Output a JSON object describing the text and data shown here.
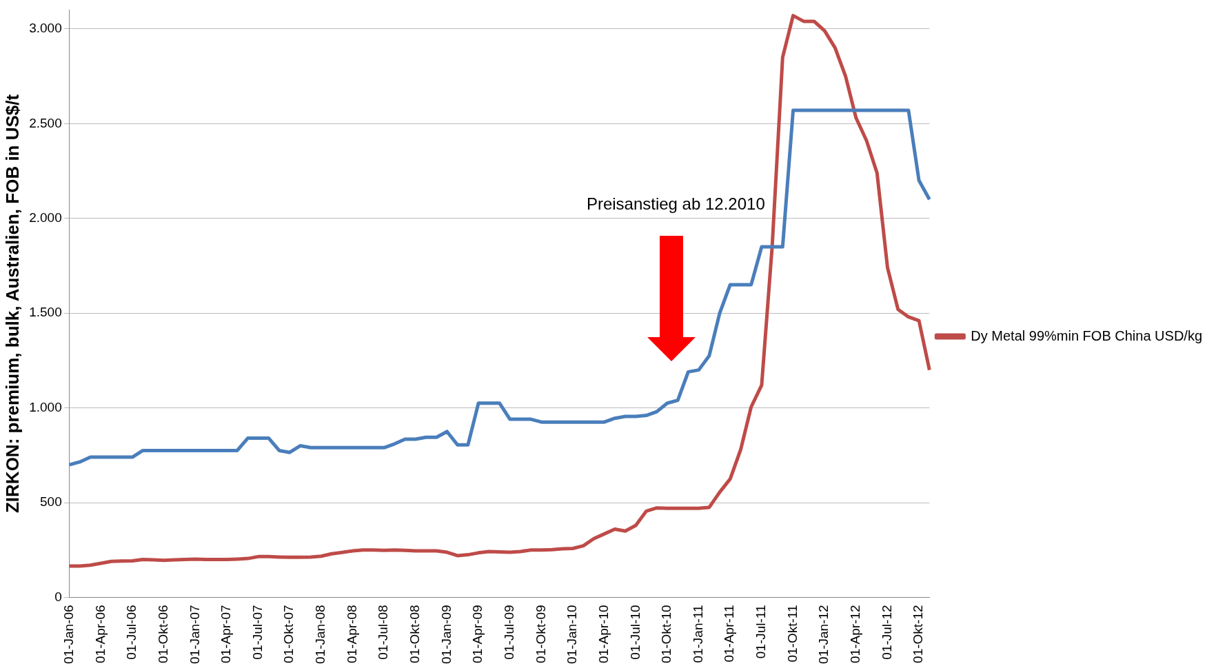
{
  "chart_data": {
    "type": "line",
    "ylabel": "ZIRKON: premium, bulk, Australien, FOB in US$/t",
    "categories": [
      "01-Jan-06",
      null,
      null,
      "01-Apr-06",
      null,
      null,
      "01-Jul-06",
      null,
      null,
      "01-Okt-06",
      null,
      null,
      "01-Jan-07",
      null,
      null,
      "01-Apr-07",
      null,
      null,
      "01-Jul-07",
      null,
      null,
      "01-Okt-07",
      null,
      null,
      "01-Jan-08",
      null,
      null,
      "01-Apr-08",
      null,
      null,
      "01-Jul-08",
      null,
      null,
      "01-Okt-08",
      null,
      null,
      "01-Jan-09",
      null,
      null,
      "01-Apr-09",
      null,
      null,
      "01-Jul-09",
      null,
      null,
      "01-Okt-09",
      null,
      null,
      "01-Jan-10",
      null,
      null,
      "01-Apr-10",
      null,
      null,
      "01-Jul-10",
      null,
      null,
      "01-Okt-10",
      null,
      null,
      "01-Jan-11",
      null,
      null,
      "01-Apr-11",
      null,
      null,
      "01-Jul-11",
      null,
      null,
      "01-Okt-11",
      null,
      null,
      "01-Jan-12",
      null,
      null,
      "01-Apr-12",
      null,
      null,
      "01-Jul-12",
      null,
      null,
      "01-Okt-12",
      null
    ],
    "series": [
      {
        "color": "#4a7ebb",
        "values": [
          700,
          715,
          740,
          740,
          740,
          740,
          740,
          775,
          775,
          775,
          775,
          775,
          775,
          775,
          775,
          775,
          775,
          840,
          840,
          840,
          775,
          765,
          800,
          790,
          790,
          790,
          790,
          790,
          790,
          790,
          790,
          810,
          835,
          835,
          845,
          845,
          875,
          805,
          805,
          1025,
          1025,
          1025,
          940,
          940,
          940,
          925,
          925,
          925,
          925,
          925,
          925,
          925,
          945,
          955,
          955,
          960,
          980,
          1025,
          1040,
          1190,
          1200,
          1275,
          1500,
          1650,
          1650,
          1650,
          1850,
          1850,
          1850,
          2570,
          2570,
          2570,
          2570,
          2570,
          2570,
          2570,
          2570,
          2570,
          2570,
          2570,
          2570,
          2200,
          2100
        ]
      },
      {
        "name": "Dy Metal 99%min FOB China USD/kg",
        "color": "#be4b48",
        "values": [
          165,
          165,
          170,
          180,
          190,
          192,
          193,
          200,
          198,
          195,
          198,
          200,
          202,
          200,
          200,
          200,
          202,
          205,
          215,
          215,
          213,
          212,
          212,
          213,
          217,
          230,
          237,
          245,
          250,
          250,
          248,
          250,
          248,
          245,
          245,
          245,
          238,
          220,
          225,
          235,
          242,
          240,
          238,
          242,
          250,
          250,
          252,
          256,
          258,
          272,
          310,
          335,
          360,
          350,
          380,
          455,
          472,
          470,
          470,
          470,
          470,
          475,
          555,
          625,
          780,
          1005,
          1120,
          1850,
          2850,
          3070,
          3040,
          3040,
          2990,
          2900,
          2750,
          2530,
          2410,
          2240,
          1740,
          1520,
          1480,
          1460,
          1200
        ]
      }
    ],
    "ylim": [
      0,
      3100
    ],
    "yticks": [
      0,
      {
        "value": 500,
        "label": "500"
      },
      {
        "value": 1000,
        "label": "1.000"
      },
      {
        "value": 1500,
        "label": "1.500"
      },
      {
        "value": 2000,
        "label": "2.000"
      },
      {
        "value": 2500,
        "label": "2.500"
      },
      {
        "value": 3000,
        "label": "3.000"
      }
    ],
    "grid": "y",
    "legend": "right",
    "marker": "none",
    "line_style": "solid",
    "annotations": [
      "Preisanstieg ab 12.2010"
    ]
  }
}
